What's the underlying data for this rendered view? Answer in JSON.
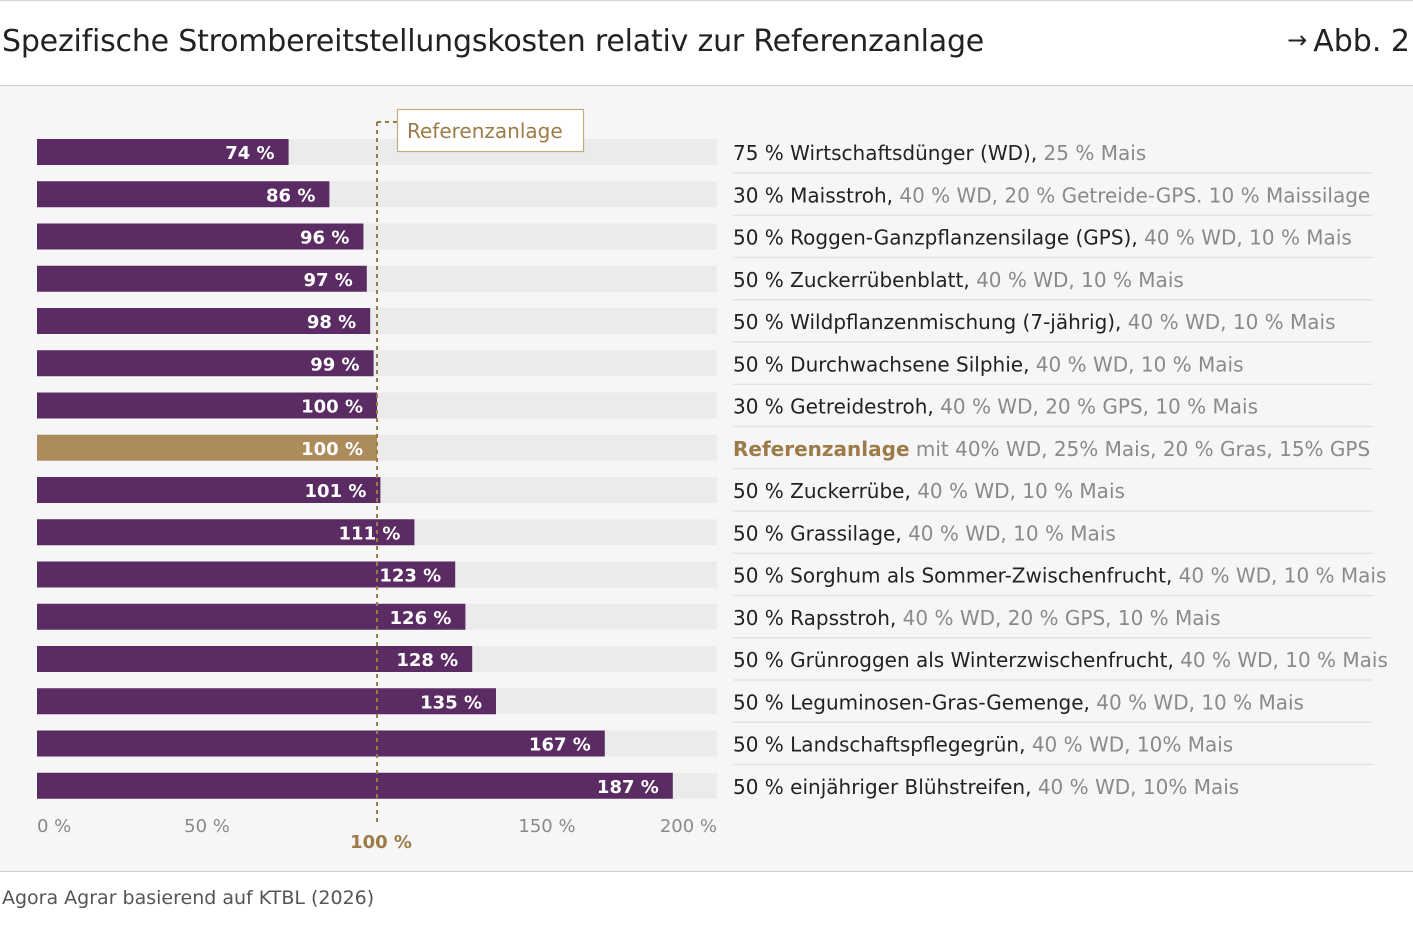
{
  "header": {
    "title": "Spezifische Strombereitstellungskosten relativ zur Referenzanlage",
    "figure_ref_arrow": "→",
    "figure_ref": "Abb. 2"
  },
  "source": "Agora Agrar basierend auf KTBL (2026)",
  "colors": {
    "bar": "#5b2c63",
    "reference_bar": "#ad8c5c",
    "track": "#ebebeb",
    "secondary_text": "#8a8a8a",
    "reference_text": "#9c7b48"
  },
  "chart_data": {
    "type": "bar",
    "orientation": "horizontal",
    "xlim": [
      0,
      200
    ],
    "x_ticks": [
      "0 %",
      "50 %",
      "150 %",
      "200 %"
    ],
    "x_tick_values": [
      0,
      50,
      150,
      200
    ],
    "reference_line": {
      "value": 100,
      "label": "Referenzanlage",
      "axis_label": "100 %"
    },
    "bars": [
      {
        "value": 74,
        "label": "74 %",
        "main": "75 % Wirtschaftsdünger (WD),",
        "detail": " 25 % Mais",
        "reference": false
      },
      {
        "value": 86,
        "label": "86 %",
        "main": "30 % Maisstroh,",
        "detail": " 40 % WD, 20 % Getreide-GPS. 10 % Maissilage",
        "reference": false
      },
      {
        "value": 96,
        "label": "96 %",
        "main": "50 % Roggen-Ganzpflanzensilage (GPS),",
        "detail": " 40 % WD, 10 % Mais",
        "reference": false
      },
      {
        "value": 97,
        "label": "97 %",
        "main": "50 % Zuckerrübenblatt,",
        "detail": " 40 % WD, 10 % Mais",
        "reference": false
      },
      {
        "value": 98,
        "label": "98 %",
        "main": "50 % Wildpflanzenmischung (7-jährig),",
        "detail": " 40 % WD, 10 % Mais",
        "reference": false
      },
      {
        "value": 99,
        "label": "99 %",
        "main": "50 % Durchwachsene Silphie,",
        "detail": " 40 % WD, 10 % Mais",
        "reference": false
      },
      {
        "value": 100,
        "label": "100 %",
        "main": "30 % Getreidestroh,",
        "detail": " 40 % WD, 20 % GPS, 10 % Mais",
        "reference": false
      },
      {
        "value": 100,
        "label": "100 %",
        "main": "Referenzanlage",
        "detail": " mit 40% WD, 25% Mais, 20 % Gras, 15% GPS",
        "reference": true
      },
      {
        "value": 101,
        "label": "101 %",
        "main": "50 % Zuckerrübe,",
        "detail": " 40 % WD, 10 % Mais",
        "reference": false
      },
      {
        "value": 111,
        "label": "111 %",
        "main": "50 % Grassilage,",
        "detail": " 40 % WD, 10 % Mais",
        "reference": false
      },
      {
        "value": 123,
        "label": "123 %",
        "main": "50 % Sorghum als Sommer-Zwischenfrucht,",
        "detail": " 40 % WD, 10 % Mais",
        "reference": false
      },
      {
        "value": 126,
        "label": "126 %",
        "main": "30 % Rapsstroh,",
        "detail": " 40 % WD, 20 % GPS, 10 % Mais",
        "reference": false
      },
      {
        "value": 128,
        "label": "128 %",
        "main": "50 % Grünroggen als Winterzwischenfrucht,",
        "detail": " 40 % WD, 10 % Mais",
        "reference": false
      },
      {
        "value": 135,
        "label": "135 %",
        "main": "50 % Leguminosen-Gras-Gemenge,",
        "detail": " 40 % WD, 10 % Mais",
        "reference": false
      },
      {
        "value": 167,
        "label": "167 %",
        "main": "50 % Landschaftspflegegrün,",
        "detail": " 40 % WD, 10% Mais",
        "reference": false
      },
      {
        "value": 187,
        "label": "187 %",
        "main": "50 % einjähriger Blühstreifen,",
        "detail": " 40 % WD, 10% Mais",
        "reference": false
      }
    ]
  }
}
